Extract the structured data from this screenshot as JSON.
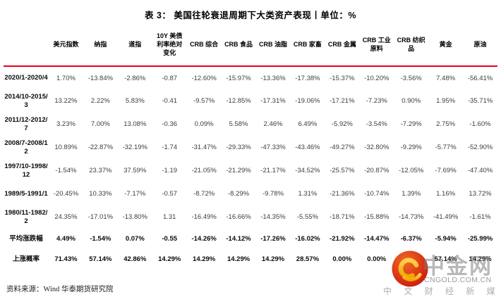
{
  "title": "表 3：  美国往轮衰退周期下大类资产表现丨单位：%",
  "table": {
    "columns": [
      "美元指数",
      "纳指",
      "道指",
      "10Y 美债利率绝对变化",
      "CRB 综合",
      "CRB 食品",
      "CRB 油脂",
      "CRB 家畜",
      "CRB 金属",
      "CRB 工业原料",
      "CRB 纺织品",
      "黄金",
      "原油"
    ],
    "rows": [
      {
        "label": "2020/1-2020/4",
        "bold": false,
        "values": [
          "1.70%",
          "-13.84%",
          "-2.86%",
          "-0.87",
          "-12.60%",
          "-15.97%",
          "-13.36%",
          "-17.38%",
          "-15.37%",
          "-10.20%",
          "-3.56%",
          "7.48%",
          "-56.41%"
        ]
      },
      {
        "label": "2014/10-2015/3",
        "bold": false,
        "values": [
          "13.22%",
          "2.22%",
          "5.83%",
          "-0.41",
          "-9.57%",
          "-12.85%",
          "-17.31%",
          "-19.06%",
          "-17.21%",
          "-7.23%",
          "0.90%",
          "1.95%",
          "-35.71%"
        ]
      },
      {
        "label": "2011/12-2012/7",
        "bold": false,
        "values": [
          "3.23%",
          "7.00%",
          "13.08%",
          "-0.36",
          "0.09%",
          "5.58%",
          "2.46%",
          "6.49%",
          "-5.92%",
          "-3.54%",
          "-7.29%",
          "2.75%",
          "-1.60%"
        ]
      },
      {
        "label": "2008/7-2008/12",
        "bold": false,
        "values": [
          "10.89%",
          "-22.87%",
          "-32.19%",
          "-1.74",
          "-31.47%",
          "-29.33%",
          "-47.33%",
          "-43.46%",
          "-49.27%",
          "-32.80%",
          "-9.29%",
          "-5.77%",
          "-52.90%"
        ]
      },
      {
        "label": "1997/10-1998/12",
        "bold": false,
        "values": [
          "-1.54%",
          "23.37%",
          "37.59%",
          "-1.19",
          "-21.05%",
          "-21.29%",
          "-21.17%",
          "-34.52%",
          "-25.57%",
          "-20.87%",
          "-12.05%",
          "-7.69%",
          "-47.40%"
        ]
      },
      {
        "label": "1989/5-1991/1",
        "bold": false,
        "values": [
          "-20.45%",
          "10.33%",
          "-7.17%",
          "-0.57",
          "-8.72%",
          "-8.29%",
          "-9.78%",
          "1.31%",
          "-21.36%",
          "-10.74%",
          "1.39%",
          "1.16%",
          "13.72%"
        ]
      },
      {
        "label": "1980/11-1982/2",
        "bold": false,
        "values": [
          "24.35%",
          "-17.01%",
          "-13.80%",
          "1.31",
          "-16.49%",
          "-16.66%",
          "-14.35%",
          "-5.55%",
          "-18.71%",
          "-15.88%",
          "-14.73%",
          "-41.49%",
          "-1.61%"
        ]
      },
      {
        "label": "平均涨跌幅",
        "bold": true,
        "values": [
          "4.49%",
          "-1.54%",
          "0.07%",
          "-0.55",
          "-14.26%",
          "-14.12%",
          "-17.26%",
          "-16.02%",
          "-21.92%",
          "-14.47%",
          "-6.37%",
          "-5.94%",
          "-25.99%"
        ]
      },
      {
        "label": "上涨概率",
        "bold": true,
        "values": [
          "71.43%",
          "57.14%",
          "42.86%",
          "14.29%",
          "14.29%",
          "14.29%",
          "14.29%",
          "28.57%",
          "0.00%",
          "0.00%",
          "",
          "57.14%",
          "14.29%"
        ]
      }
    ]
  },
  "source": "资料来源：Wind  华泰期货研究院",
  "watermark": {
    "brand": "中金网",
    "domain": "CNGOLD.COM.CN",
    "tagline": "中 文 财 经 新 媒 体"
  },
  "colors": {
    "header_rule": "#e8001e",
    "logo_red_outer": "#c9150d",
    "logo_red_inner": "#f26a22",
    "logo_gold_light": "#ffd24d",
    "logo_gold_deep": "#f0a500"
  }
}
